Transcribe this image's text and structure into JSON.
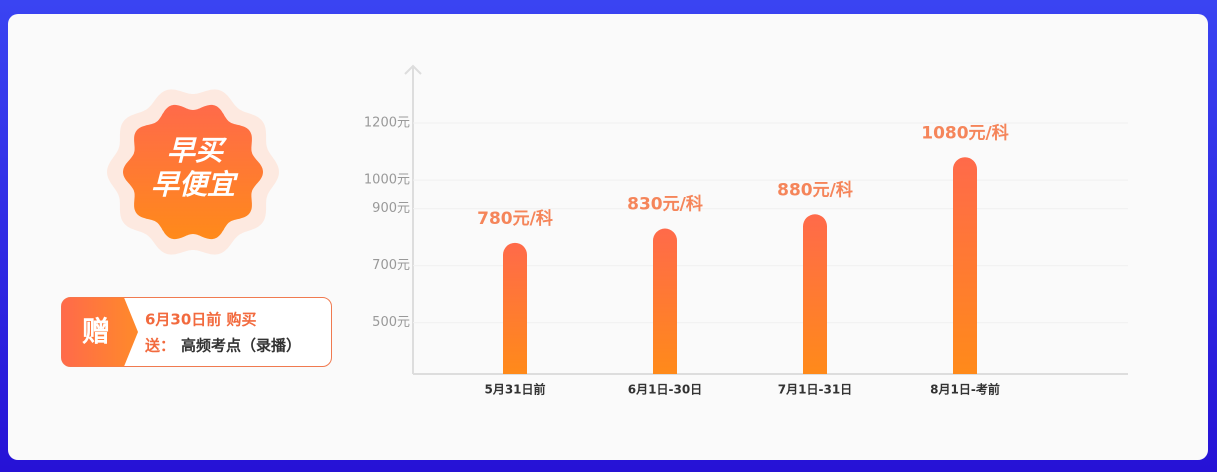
{
  "badge": {
    "lines": [
      "早买",
      "早便宜"
    ]
  },
  "gift": {
    "icon": "赠",
    "line1": "6月30日前 购买",
    "label": "送：",
    "item": "高频考点（录播）"
  },
  "chart_data": {
    "type": "bar",
    "categories": [
      "5月31日前",
      "6月1日-30日",
      "7月1日-31日",
      "8月1日-考前"
    ],
    "values": [
      780,
      830,
      880,
      1080
    ],
    "value_labels": [
      "780元/科",
      "830元/科",
      "880元/科",
      "1080元/科"
    ],
    "color": "#ff7a3a",
    "ylim": [
      320,
      1400
    ],
    "yticks": [
      {
        "value": 500,
        "label": "500元"
      },
      {
        "value": 700,
        "label": "700元"
      },
      {
        "value": 900,
        "label": "900元"
      },
      {
        "value": 1000,
        "label": "1000元"
      },
      {
        "value": 1200,
        "label": "1200元"
      }
    ],
    "grid": true
  }
}
